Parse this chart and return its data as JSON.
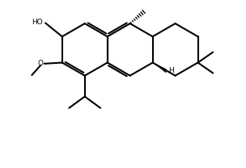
{
  "bg_color": "#ffffff",
  "bond_color": "#000000",
  "lw": 1.5,
  "figsize": [
    3.04,
    2.08
  ],
  "dpi": 100,
  "xlim": [
    -0.5,
    9.5
  ],
  "ylim": [
    -0.5,
    7.5
  ]
}
